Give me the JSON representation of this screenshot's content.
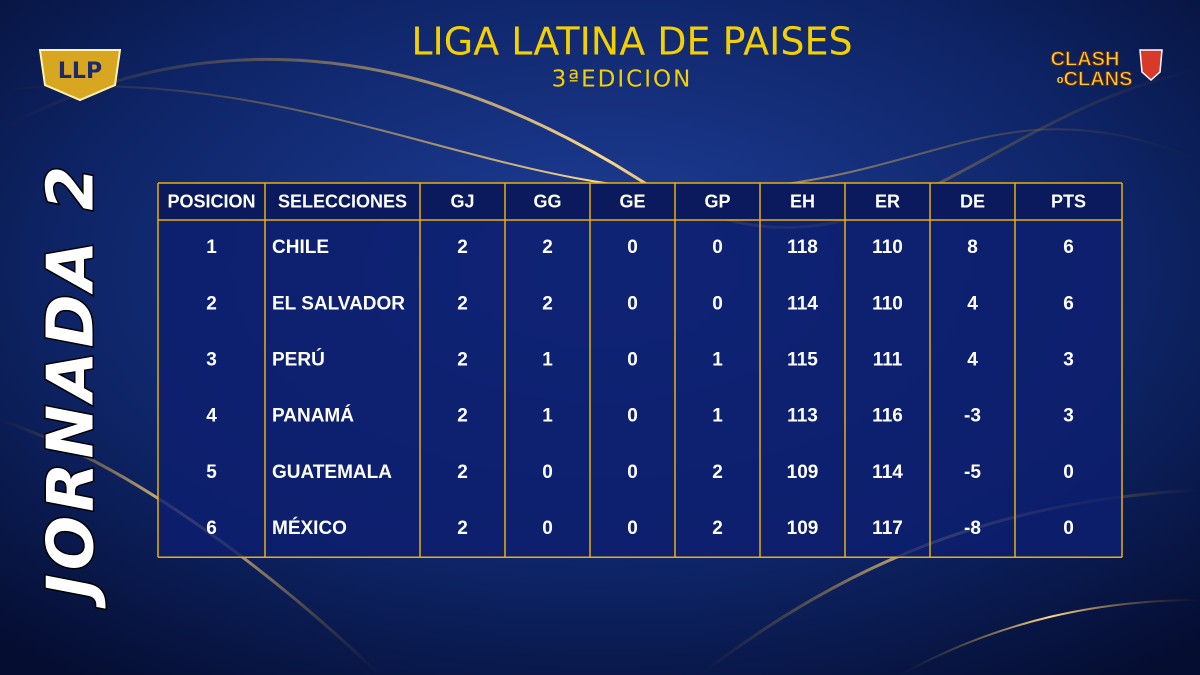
{
  "header": {
    "title": "LIGA LATINA DE PAISES",
    "subtitle": "3ªEDICION",
    "round": "JORNADA 2"
  },
  "logos": {
    "left": "LLP",
    "right": [
      "CLASH",
      "of",
      "CLANS"
    ]
  },
  "table": {
    "columns": [
      "POSICION",
      "SELECCIONES",
      "GJ",
      "GG",
      "GE",
      "GP",
      "EH",
      "ER",
      "DE",
      "PTS"
    ],
    "rows": [
      [
        1,
        "CHILE",
        2,
        2,
        0,
        0,
        118,
        110,
        8,
        6
      ],
      [
        2,
        "EL SALVADOR",
        2,
        2,
        0,
        0,
        114,
        110,
        4,
        6
      ],
      [
        3,
        "PERÚ",
        2,
        1,
        0,
        1,
        115,
        111,
        4,
        3
      ],
      [
        4,
        "PANAMÁ",
        2,
        1,
        0,
        1,
        113,
        116,
        -3,
        3
      ],
      [
        5,
        "GUATEMALA",
        2,
        0,
        0,
        2,
        109,
        114,
        -5,
        0
      ],
      [
        6,
        "MÉXICO",
        2,
        0,
        0,
        2,
        109,
        117,
        -8,
        0
      ]
    ]
  }
}
